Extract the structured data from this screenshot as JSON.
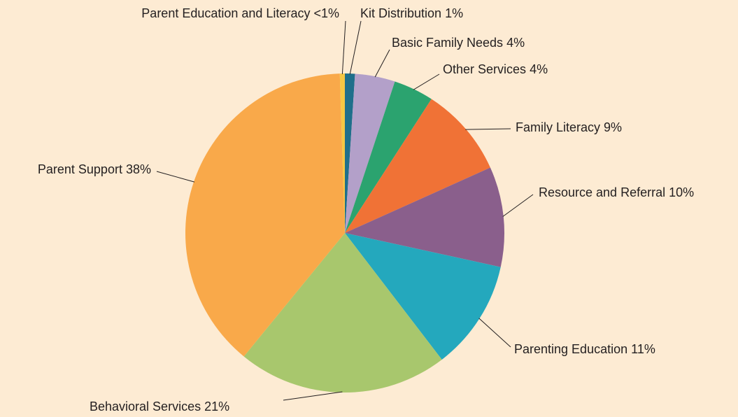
{
  "chart_data": {
    "type": "pie",
    "categories": [
      "Kit Distribution",
      "Basic Family Needs",
      "Other Services",
      "Family Literacy",
      "Resource and Referral",
      "Parenting Education",
      "Behavioral Services",
      "Parent Support",
      "Parent Education and Literacy"
    ],
    "values": [
      1,
      4,
      4,
      9,
      10,
      11,
      21,
      38,
      0.5
    ],
    "value_labels": [
      "1%",
      "4%",
      "4%",
      "9%",
      "10%",
      "11%",
      "21%",
      "38%",
      "<1%"
    ],
    "colors": [
      "#1f6f8b",
      "#b3a0c9",
      "#2ba36f",
      "#f07236",
      "#8a5f8c",
      "#24a8bd",
      "#a8c76d",
      "#f9a94a",
      "#f6c744"
    ]
  }
}
